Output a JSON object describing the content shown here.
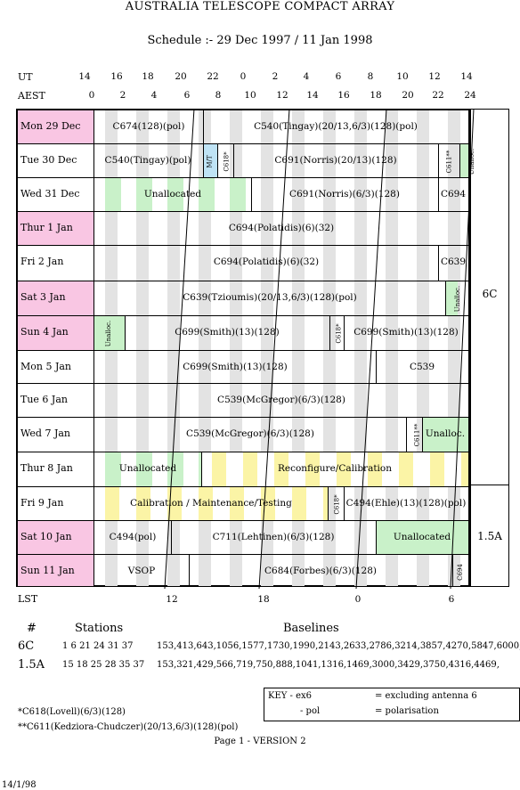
{
  "title": "AUSTRALIA TELESCOPE COMPACT ARRAY",
  "subtitle": "Schedule :- 29 Dec 1997 / 11 Jan 1998",
  "ut_label": "UT",
  "aest_label": "AEST",
  "lst_label": "LST",
  "ut_ticks": [
    "14",
    "16",
    "18",
    "20",
    "22",
    "0",
    "2",
    "4",
    "6",
    "8",
    "10",
    "12",
    "14"
  ],
  "aest_ticks": [
    "0",
    "2",
    "4",
    "6",
    "8",
    "10",
    "12",
    "14",
    "16",
    "18",
    "20",
    "22",
    "24"
  ],
  "lst_ticks": [
    "12",
    "18",
    "0",
    "6"
  ],
  "rows": [
    {
      "day": "Mon  29  Dec",
      "pink": true
    },
    {
      "day": "Tue  30  Dec",
      "pink": false
    },
    {
      "day": "Wed  31  Dec",
      "pink": false
    },
    {
      "day": "Thur  1  Jan",
      "pink": true
    },
    {
      "day": "Fri    2  Jan",
      "pink": false
    },
    {
      "day": "Sat    3  Jan",
      "pink": true
    },
    {
      "day": "Sun    4  Jan",
      "pink": true
    },
    {
      "day": "Mon   5  Jan",
      "pink": false
    },
    {
      "day": "Tue    6  Jan",
      "pink": false
    },
    {
      "day": "Wed   7  Jan",
      "pink": false
    },
    {
      "day": "Thur   8  Jan",
      "pink": false
    },
    {
      "day": "Fri     9  Jan",
      "pink": false
    },
    {
      "day": "Sat   10  Jan",
      "pink": true
    },
    {
      "day": "Sun   11  Jan",
      "pink": true
    }
  ],
  "blocks": {
    "r0": [
      "C674(128)(pol)",
      "C540(Tingay)(20/13,6/3)(128)(pol)"
    ],
    "r1": [
      "C540(Tingay)(pol)",
      "M/T",
      "C618*",
      "C691(Norris)(20/13)(128)",
      "C611**",
      "Unalloc."
    ],
    "r2": [
      "Unallocated",
      "C691(Norris)(6/3)(128)",
      "C694"
    ],
    "r3": [
      "C694(Polatidis)(6)(32)"
    ],
    "r4": [
      "C694(Polatidis)(6)(32)",
      "C639"
    ],
    "r5": [
      "C639(Tzioumis)(20/13,6/3)(128)(pol)",
      "Unalloc."
    ],
    "r6": [
      "Unalloc.",
      "C699(Smith)(13)(128)",
      "C618*",
      "C699(Smith)(13)(128)"
    ],
    "r7": [
      "C699(Smith)(13)(128)",
      "C539"
    ],
    "r8": [
      "C539(McGregor)(6/3)(128)"
    ],
    "r9": [
      "C539(McGregor)(6/3)(128)",
      "C611**",
      "Unalloc."
    ],
    "r10": [
      "Unallocated",
      "Reconfigure/Calibration"
    ],
    "r11": [
      "Calibration / Maintenance/Testing",
      "C618*",
      "C494(Ehle)(13)(128)(pol)"
    ],
    "r12": [
      "C494(pol)",
      "C711(Lehtinen)(6/3)(128)",
      "Unallocated"
    ],
    "r13": [
      "VSOP",
      "C684(Forbes)(6/3)(128)",
      "C694"
    ]
  },
  "config_a": "6C",
  "config_b": "1.5A",
  "table": {
    "h_hash": "#",
    "h_stations": "Stations",
    "h_baselines": "Baselines",
    "r1_cfg": "6C",
    "r1_st": "1 6 21 24 31 37",
    "r1_bl": "153,413,643,1056,1577,1730,1990,2143,2633,2786,3214,3857,4270,5847,6000,",
    "r2_cfg": "1.5A",
    "r2_st": "15 18 25 28 35 37",
    "r2_bl": "153,321,429,566,719,750,888,1041,1316,1469,3000,3429,3750,4316,4469,"
  },
  "key": {
    "k1a": "KEY   - ex6",
    "k1b": "= excluding antenna 6",
    "k2a": "- pol",
    "k2b": "= polarisation"
  },
  "footnote1": "*C618(Lovell)(6/3)(128)",
  "footnote2": "**C611(Kedziora-Chudczer)(20/13,6/3)(128)(pol)",
  "page": "Page 1 - VERSION 2",
  "date": "14/1/98"
}
